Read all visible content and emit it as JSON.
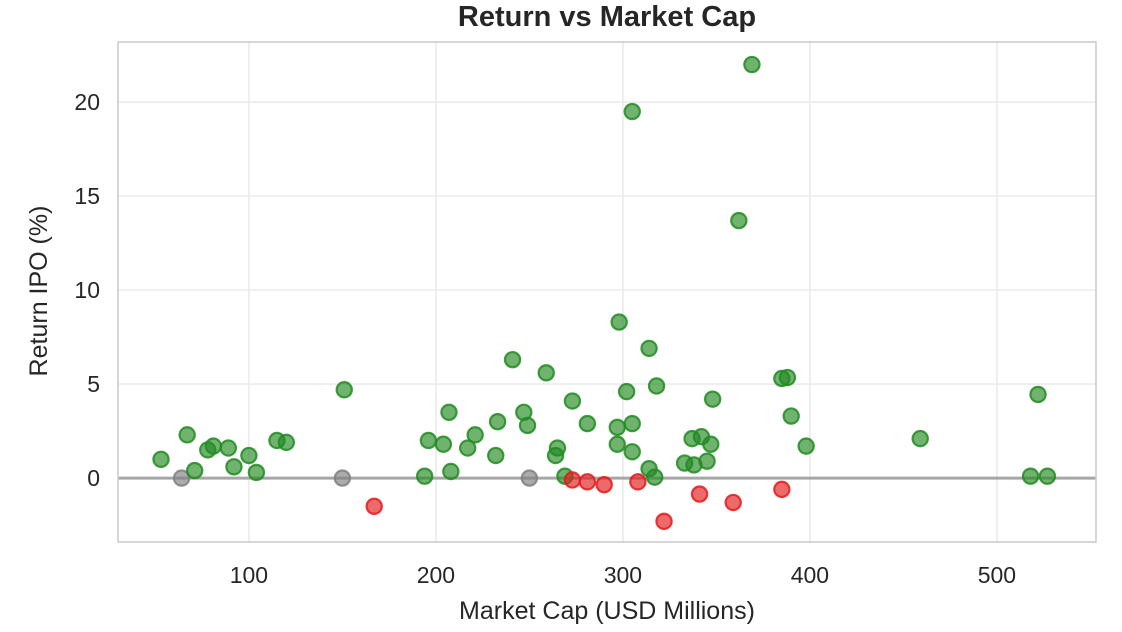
{
  "chart_data": {
    "type": "scatter",
    "title": "Return vs Market Cap",
    "xlabel": "Market Cap (USD Millions)",
    "ylabel": "Return IPO (%)",
    "xlim": [
      30,
      553
    ],
    "ylim": [
      -3.4,
      23.2
    ],
    "xticks": [
      100,
      200,
      300,
      400,
      500
    ],
    "yticks": [
      0,
      5,
      10,
      15,
      20
    ],
    "grid": true,
    "reference_line_y": 0,
    "colors": {
      "positive": "#228b22",
      "negative": "#e41a1c",
      "zero": "#808080",
      "reference_line": "#a6a6a6"
    },
    "points": [
      {
        "x": 53,
        "y": 1.0
      },
      {
        "x": 64,
        "y": 0.0
      },
      {
        "x": 67,
        "y": 2.3
      },
      {
        "x": 71,
        "y": 0.4
      },
      {
        "x": 78,
        "y": 1.5
      },
      {
        "x": 81,
        "y": 1.7
      },
      {
        "x": 89,
        "y": 1.6
      },
      {
        "x": 92,
        "y": 0.6
      },
      {
        "x": 100,
        "y": 1.2
      },
      {
        "x": 104,
        "y": 0.3
      },
      {
        "x": 115,
        "y": 2.0
      },
      {
        "x": 120,
        "y": 1.9
      },
      {
        "x": 150,
        "y": 0.0
      },
      {
        "x": 151,
        "y": 4.7
      },
      {
        "x": 167,
        "y": -1.5
      },
      {
        "x": 194,
        "y": 0.1
      },
      {
        "x": 196,
        "y": 2.0
      },
      {
        "x": 204,
        "y": 1.8
      },
      {
        "x": 207,
        "y": 3.5
      },
      {
        "x": 208,
        "y": 0.35
      },
      {
        "x": 217,
        "y": 1.6
      },
      {
        "x": 221,
        "y": 2.3
      },
      {
        "x": 232,
        "y": 1.2
      },
      {
        "x": 233,
        "y": 3.0
      },
      {
        "x": 241,
        "y": 6.3
      },
      {
        "x": 247,
        "y": 3.5
      },
      {
        "x": 249,
        "y": 2.8
      },
      {
        "x": 250,
        "y": 0.0
      },
      {
        "x": 259,
        "y": 5.6
      },
      {
        "x": 264,
        "y": 1.2
      },
      {
        "x": 265,
        "y": 1.6
      },
      {
        "x": 269,
        "y": 0.1
      },
      {
        "x": 273,
        "y": 4.1
      },
      {
        "x": 273,
        "y": -0.1
      },
      {
        "x": 281,
        "y": 2.9
      },
      {
        "x": 281,
        "y": -0.2
      },
      {
        "x": 290,
        "y": -0.35
      },
      {
        "x": 297,
        "y": 1.8
      },
      {
        "x": 297,
        "y": 2.7
      },
      {
        "x": 298,
        "y": 8.3
      },
      {
        "x": 302,
        "y": 4.6
      },
      {
        "x": 305,
        "y": 2.9
      },
      {
        "x": 305,
        "y": 1.4
      },
      {
        "x": 305,
        "y": 19.5
      },
      {
        "x": 308,
        "y": -0.2
      },
      {
        "x": 314,
        "y": 0.5
      },
      {
        "x": 314,
        "y": 6.9
      },
      {
        "x": 317,
        "y": 0.05
      },
      {
        "x": 318,
        "y": 4.9
      },
      {
        "x": 322,
        "y": -2.3
      },
      {
        "x": 333,
        "y": 0.8
      },
      {
        "x": 337,
        "y": 2.1
      },
      {
        "x": 338,
        "y": 0.7
      },
      {
        "x": 341,
        "y": -0.85
      },
      {
        "x": 342,
        "y": 2.2
      },
      {
        "x": 345,
        "y": 0.9
      },
      {
        "x": 347,
        "y": 1.8
      },
      {
        "x": 348,
        "y": 4.2
      },
      {
        "x": 359,
        "y": -1.3
      },
      {
        "x": 362,
        "y": 13.7
      },
      {
        "x": 369,
        "y": 22.0
      },
      {
        "x": 385,
        "y": 5.3
      },
      {
        "x": 385,
        "y": -0.6
      },
      {
        "x": 388,
        "y": 5.35
      },
      {
        "x": 390,
        "y": 3.3
      },
      {
        "x": 398,
        "y": 1.7
      },
      {
        "x": 459,
        "y": 2.1
      },
      {
        "x": 518,
        "y": 0.1
      },
      {
        "x": 522,
        "y": 4.45
      },
      {
        "x": 527,
        "y": 0.1
      }
    ]
  }
}
